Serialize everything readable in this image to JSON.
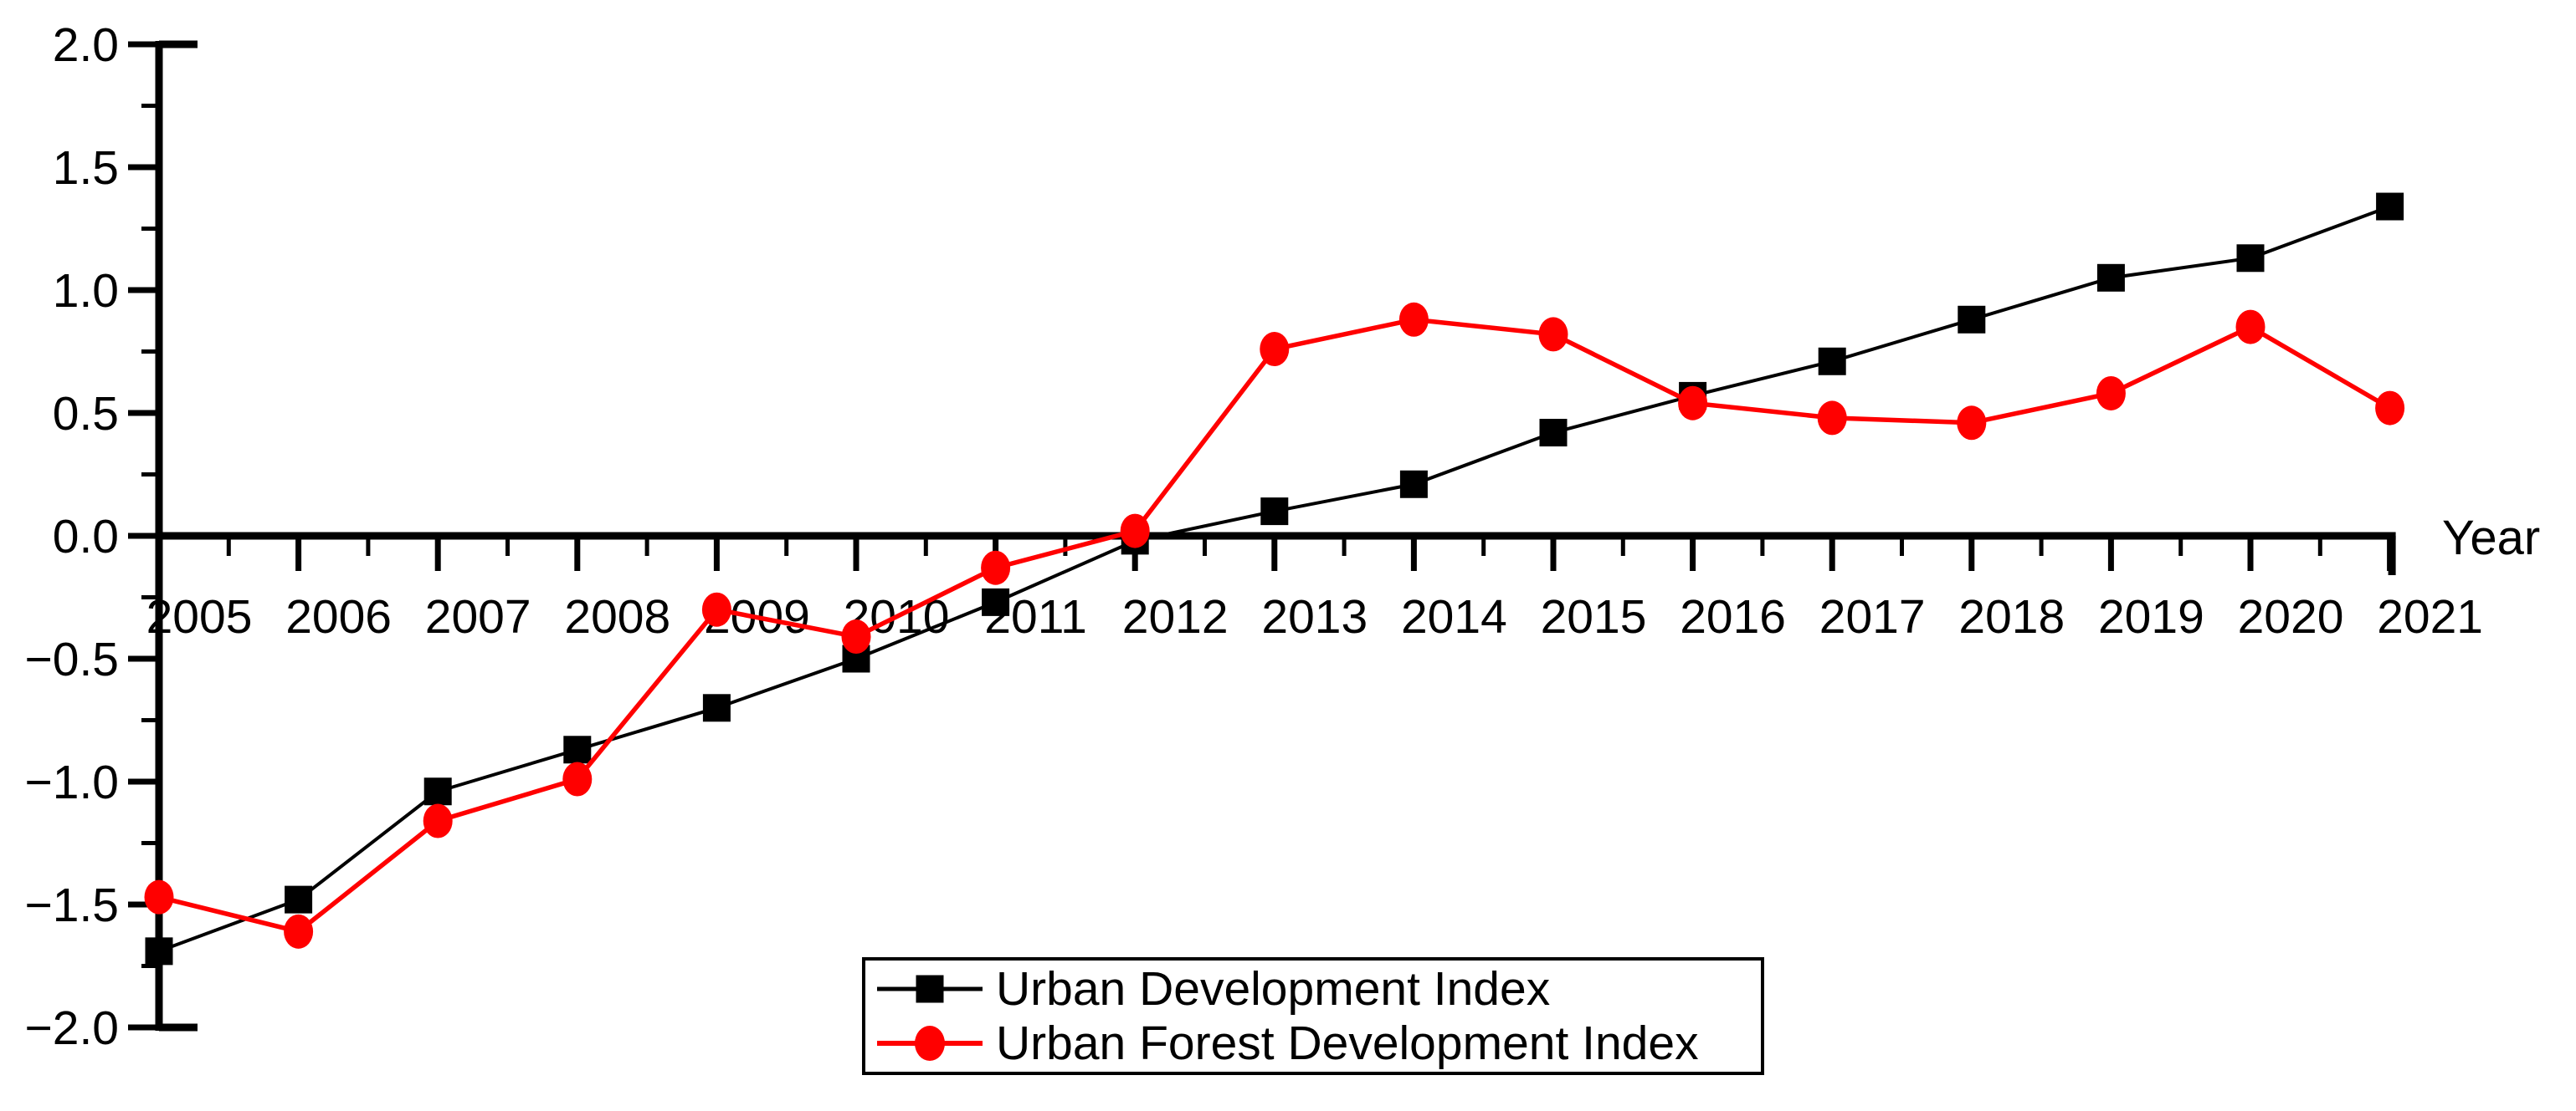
{
  "figure": {
    "background": "#ffffff",
    "axis_color": "#000000"
  },
  "chart_data": {
    "type": "line",
    "title": "",
    "xlabel": "Year",
    "ylabel": "",
    "x": [
      2005,
      2006,
      2007,
      2008,
      2009,
      2010,
      2011,
      2012,
      2013,
      2014,
      2015,
      2016,
      2017,
      2018,
      2019,
      2020,
      2021
    ],
    "series": [
      {
        "name": "Urban Development Index",
        "color": "#000000",
        "marker": "square",
        "values": [
          -1.69,
          -1.48,
          -1.04,
          -0.87,
          -0.7,
          -0.5,
          -0.27,
          -0.02,
          0.1,
          0.21,
          0.42,
          0.57,
          0.71,
          0.88,
          1.05,
          1.13,
          1.34
        ]
      },
      {
        "name": "Urban Forest Development Index",
        "color": "#ff0000",
        "marker": "circle",
        "values": [
          -1.47,
          -1.61,
          -1.16,
          -0.99,
          -0.3,
          -0.41,
          -0.13,
          0.02,
          0.76,
          0.88,
          0.82,
          0.54,
          0.48,
          0.46,
          0.58,
          0.85,
          0.52
        ]
      }
    ],
    "ylim": [
      -2.0,
      2.0
    ],
    "yticks": [
      2.0,
      1.5,
      1.0,
      0.5,
      0.0,
      -0.5,
      -1.0,
      -1.5,
      -2.0
    ],
    "y_minor_step": 0.25,
    "x_minor_step": 0.5,
    "grid": false,
    "x_axis_at_y": 0,
    "legend_position": "bottom-center",
    "legend_border": true
  }
}
